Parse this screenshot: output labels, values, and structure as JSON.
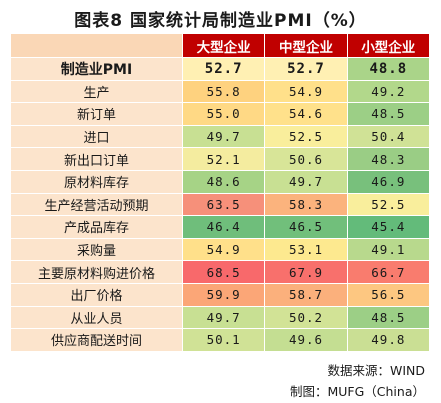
{
  "title": "图表8 国家统计局制造业PMI（%）",
  "columns": [
    "大型企业",
    "中型企业",
    "小型企业"
  ],
  "rows": [
    {
      "label": "制造业PMI",
      "bold": true,
      "values": [
        "52.7",
        "52.7",
        "48.8"
      ],
      "colors": [
        "#fff0b3",
        "#fff0b3",
        "#aad489"
      ]
    },
    {
      "label": "生产",
      "values": [
        "55.8",
        "54.9",
        "49.2"
      ],
      "colors": [
        "#fed27f",
        "#ffe08a",
        "#b2d88b"
      ]
    },
    {
      "label": "新订单",
      "values": [
        "55.0",
        "54.6",
        "48.5"
      ],
      "colors": [
        "#ffd985",
        "#ffe18b",
        "#9ccf86"
      ]
    },
    {
      "label": "进口",
      "values": [
        "49.7",
        "52.5",
        "50.4"
      ],
      "colors": [
        "#c8e093",
        "#f9ee9c",
        "#d0e296"
      ]
    },
    {
      "label": "新出口订单",
      "values": [
        "52.1",
        "50.6",
        "48.3"
      ],
      "colors": [
        "#f4ec9f",
        "#d8e598",
        "#9acd85"
      ]
    },
    {
      "label": "原材料库存",
      "values": [
        "48.6",
        "49.7",
        "46.9"
      ],
      "colors": [
        "#a6d386",
        "#c8e093",
        "#78c07c"
      ]
    },
    {
      "label": "生产经营活动预期",
      "values": [
        "63.5",
        "58.3",
        "52.5"
      ],
      "colors": [
        "#f6907a",
        "#fbb37d",
        "#f9ee9c"
      ]
    },
    {
      "label": "产成品库存",
      "values": [
        "46.4",
        "46.5",
        "45.4"
      ],
      "colors": [
        "#6fbe7b",
        "#71bf7b",
        "#63bb7a"
      ]
    },
    {
      "label": "采购量",
      "values": [
        "54.9",
        "53.1",
        "49.1"
      ],
      "colors": [
        "#ffe08a",
        "#fde98f",
        "#b8d98d"
      ]
    },
    {
      "label": "主要原材料购进价格",
      "values": [
        "68.5",
        "67.9",
        "66.7"
      ],
      "colors": [
        "#f8696b",
        "#f8706c",
        "#f97c6e"
      ]
    },
    {
      "label": "出厂价格",
      "values": [
        "59.9",
        "58.7",
        "56.5"
      ],
      "colors": [
        "#fba677",
        "#fbb07c",
        "#fdc781"
      ]
    },
    {
      "label": "从业人员",
      "values": [
        "49.7",
        "50.2",
        "48.5"
      ],
      "colors": [
        "#c8e093",
        "#d2e396",
        "#9ccf86"
      ]
    },
    {
      "label": "供应商配送时间",
      "values": [
        "50.1",
        "49.6",
        "49.8"
      ],
      "colors": [
        "#d0e296",
        "#c4de92",
        "#cadf94"
      ]
    }
  ],
  "source": "数据来源：WIND",
  "credit": "制图：MUFG（China）"
}
